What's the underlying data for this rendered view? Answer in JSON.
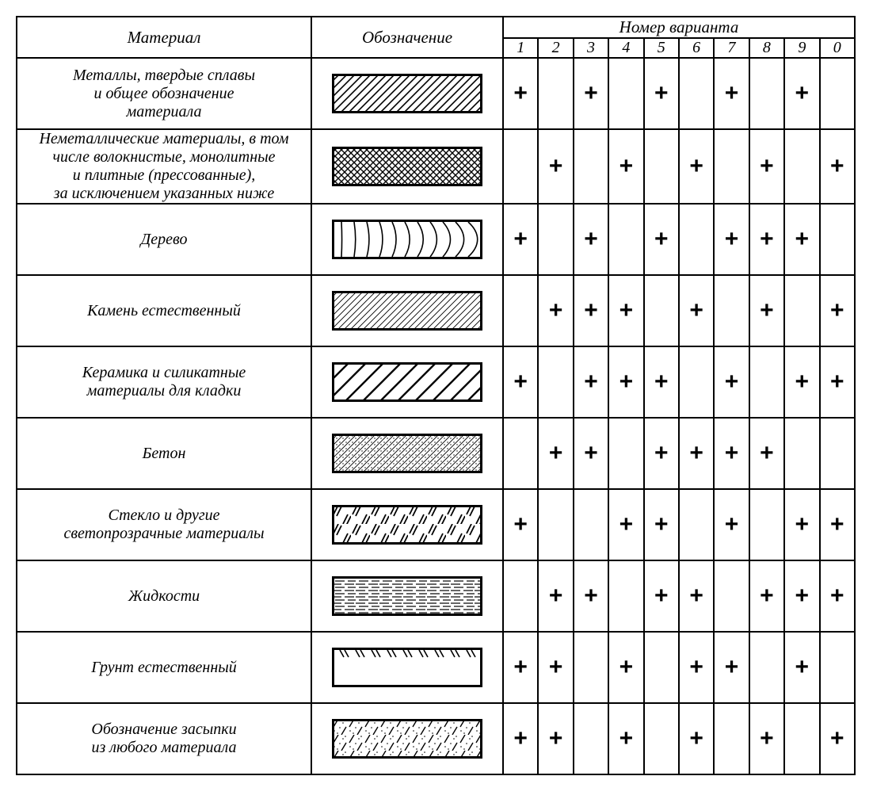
{
  "headers": {
    "material": "Материал",
    "symbol": "Обозначение",
    "variant_title": "Номер варианта",
    "variant_nums": [
      "1",
      "2",
      "3",
      "4",
      "5",
      "6",
      "7",
      "8",
      "9",
      "0"
    ]
  },
  "plus": "+",
  "rows": [
    {
      "label": "Металлы, твердые сплавы<br>и общее обозначение<br>материала",
      "pattern": "metal",
      "marks": [
        1,
        0,
        1,
        0,
        1,
        0,
        1,
        0,
        1,
        0
      ]
    },
    {
      "label": "Неметаллические материалы, в том<br>числе волокнистые, монолитные<br>и плитные (прессованные),<br>за исключением указанных ниже",
      "pattern": "nonmetal",
      "marks": [
        0,
        1,
        0,
        1,
        0,
        1,
        0,
        1,
        0,
        1
      ]
    },
    {
      "label": "Дерево",
      "pattern": "wood",
      "marks": [
        1,
        0,
        1,
        0,
        1,
        0,
        1,
        1,
        1,
        0
      ]
    },
    {
      "label": "Камень естественный",
      "pattern": "stone",
      "marks": [
        0,
        1,
        1,
        1,
        0,
        1,
        0,
        1,
        0,
        1
      ]
    },
    {
      "label": "Керамика и силикатные<br>материалы для кладки",
      "pattern": "ceramic",
      "marks": [
        1,
        0,
        1,
        1,
        1,
        0,
        1,
        0,
        1,
        1
      ]
    },
    {
      "label": "Бетон",
      "pattern": "concrete",
      "marks": [
        0,
        1,
        1,
        0,
        1,
        1,
        1,
        1,
        0,
        0
      ]
    },
    {
      "label": "Стекло и другие<br>светопрозрачные материалы",
      "pattern": "glass",
      "marks": [
        1,
        0,
        0,
        1,
        1,
        0,
        1,
        0,
        1,
        1
      ]
    },
    {
      "label": "Жидкости",
      "pattern": "liquid",
      "marks": [
        0,
        1,
        1,
        0,
        1,
        1,
        0,
        1,
        1,
        1
      ]
    },
    {
      "label": "Грунт естественный",
      "pattern": "soil",
      "marks": [
        1,
        1,
        0,
        1,
        0,
        1,
        1,
        0,
        1,
        0
      ]
    },
    {
      "label": "Обозначение засыпки<br>из любого материала",
      "pattern": "fill",
      "marks": [
        1,
        1,
        0,
        1,
        0,
        1,
        0,
        1,
        0,
        1
      ]
    }
  ],
  "style": {
    "border_color": "#000000",
    "background": "#ffffff",
    "plus_fontsize": 30,
    "label_fontsize": 20,
    "header_fontsize": 21
  }
}
